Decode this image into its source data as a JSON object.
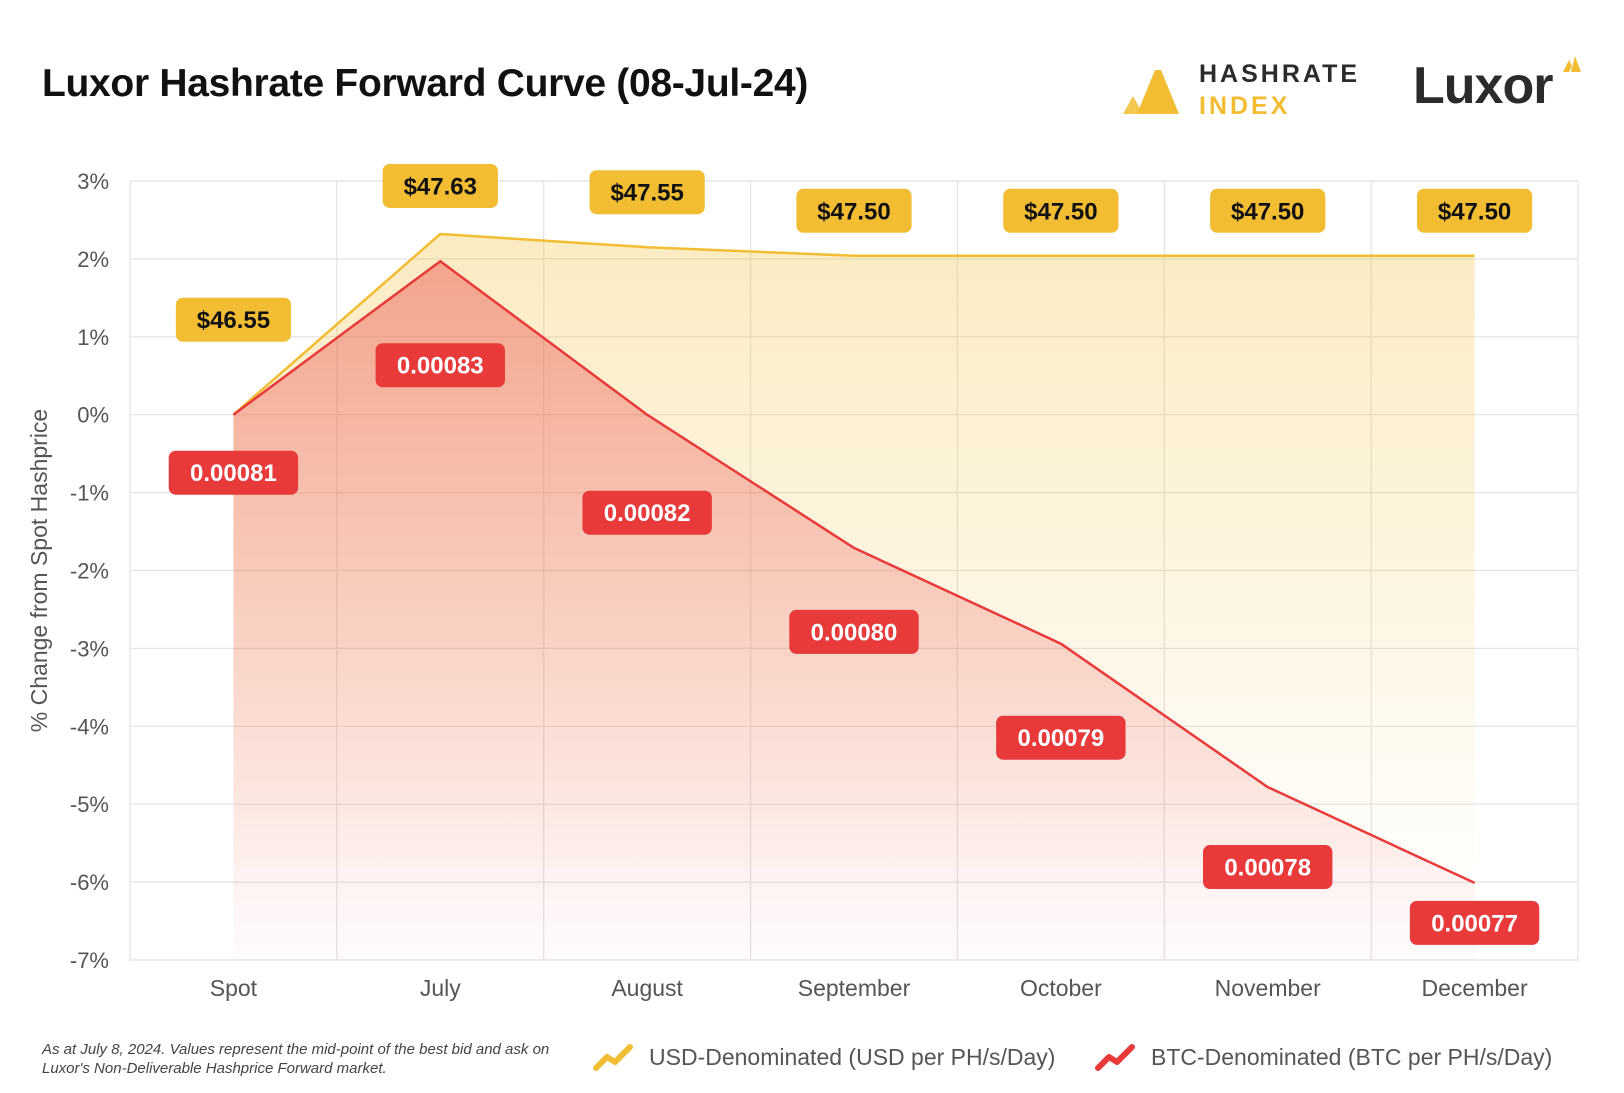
{
  "title": "Luxor Hashrate Forward Curve (08-Jul-24)",
  "logos": {
    "hashrate_line1": "HASHRATE",
    "hashrate_line2": "INDEX",
    "luxor": "Luxor"
  },
  "colors": {
    "usd": "#f2bd33",
    "btc": "#e83a3a",
    "grid": "#e3e3e3",
    "text": "#555555"
  },
  "chart_data": {
    "type": "area",
    "title": "Luxor Hashrate Forward Curve (08-Jul-24)",
    "ylabel": "% Change from Spot Hashprice",
    "xlabel": "",
    "ylim": [
      -7,
      3
    ],
    "yticks": [
      3,
      2,
      1,
      0,
      -1,
      -2,
      -3,
      -4,
      -5,
      -6,
      -7
    ],
    "ytick_labels": [
      "3%",
      "2%",
      "1%",
      "0%",
      "-1%",
      "-2%",
      "-3%",
      "-4%",
      "-5%",
      "-6%",
      "-7%"
    ],
    "categories": [
      "Spot",
      "July",
      "August",
      "September",
      "October",
      "November",
      "December"
    ],
    "grid": true,
    "series": [
      {
        "name": "USD-Denominated (USD per PH/s/Day)",
        "key": "usd",
        "values": [
          0,
          2.32,
          2.15,
          2.04,
          2.04,
          2.04,
          2.04
        ],
        "labels": [
          "$46.55",
          "$47.63",
          "$47.55",
          "$47.50",
          "$47.50",
          "$47.50",
          "$47.50"
        ]
      },
      {
        "name": "BTC-Denominated (BTC per PH/s/Day)",
        "key": "btc",
        "values": [
          0,
          1.97,
          0,
          -1.71,
          -2.94,
          -4.78,
          -6.01
        ],
        "labels": [
          "0.00081",
          "0.00083",
          "0.00082",
          "0.00080",
          "0.00079",
          "0.00078",
          "0.00077"
        ]
      }
    ]
  },
  "footnote": "As at July 8, 2024. Values represent the mid-point of the best bid and ask on Luxor's Non-Deliverable Hashprice Forward market.",
  "legend": {
    "usd": "USD-Denominated (USD per PH/s/Day)",
    "btc": "BTC-Denominated (BTC per PH/s/Day)"
  }
}
